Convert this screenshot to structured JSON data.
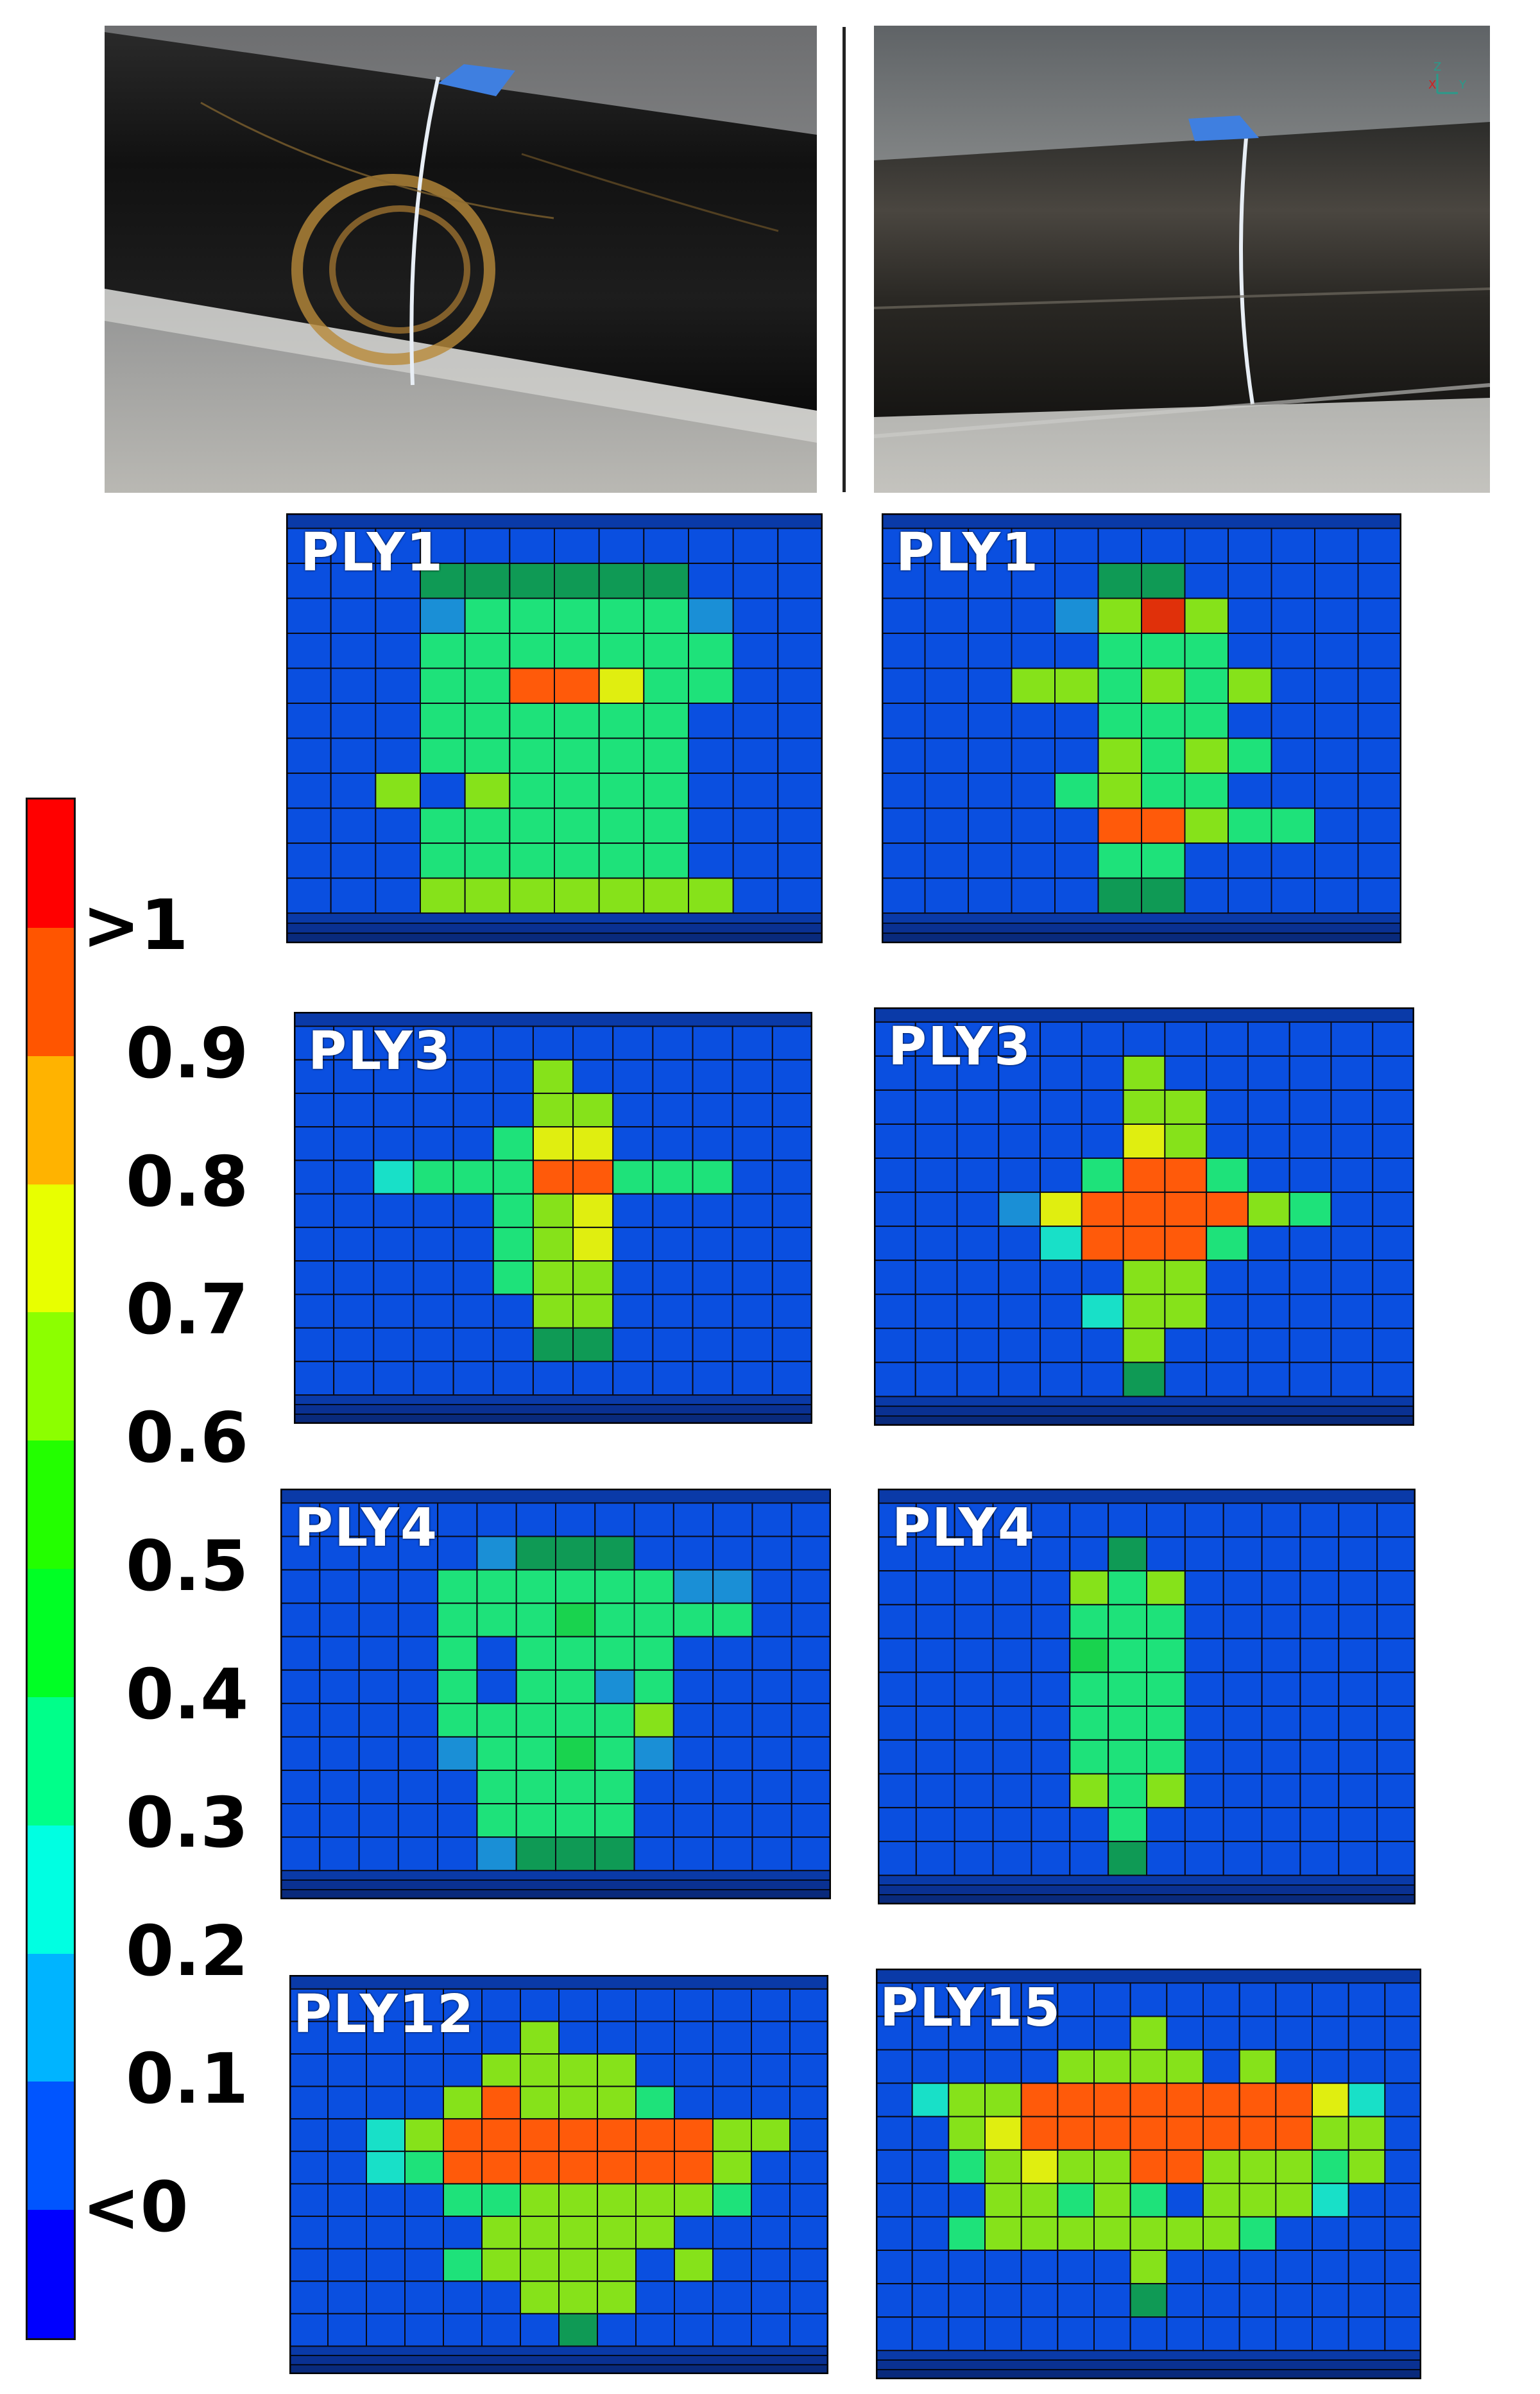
{
  "figure": {
    "legend": {
      "colors": [
        "#ff0000",
        "#ff5500",
        "#ffb300",
        "#e8ff00",
        "#8cff00",
        "#23ff00",
        "#00ff25",
        "#00ff8a",
        "#00ffe2",
        "#00b4ff",
        "#0055ff",
        "#0000ff"
      ],
      "labels": [
        ">1",
        "0.9",
        "0.8",
        "0.7",
        "0.6",
        "0.5",
        "0.4",
        "0.3",
        "0.2",
        "0.1",
        "<0"
      ]
    },
    "photos": [
      {
        "name": "photo-left-tube-impact",
        "axis_icon": "xyz-axis-icon"
      },
      {
        "name": "photo-right-tube-impact"
      }
    ],
    "axis_labels": {
      "z": "Z",
      "x": "X",
      "y": "Y"
    },
    "panels": [
      {
        "label": "PLY1",
        "name": "left-ply1",
        "cols": 12,
        "rows": 11,
        "cells": [
          "BBBBBBBBBBBB",
          "BBBMMMMMMBBB",
          "BBBcGGGGGcBB",
          "BBBGGGGGGGBB",
          "BBBGGOOYGGBB",
          "BBBGGGGGGBBB",
          "BBBGGGGGGBBB",
          "BBLBLGGGGBBB",
          "BBBGGGGGGBBB",
          "BBBGGGGGGBBB",
          "BBBLLLLLLLBB"
        ]
      },
      {
        "label": "PLY1",
        "name": "right-ply1",
        "cols": 12,
        "rows": 11,
        "cells": [
          "BBBBBBBBBBBB",
          "BBBBBMMBBBBB",
          "BBBBcLRLBBBB",
          "BBBBBGGGBBBB",
          "BBBLLGLGLBBB",
          "BBBBBGGGBBBB",
          "BBBBBLGLGBBB",
          "BBBBGLGGBBBB",
          "BBBBBOOLGGBB",
          "BBBBBGGBBBBB",
          "BBBBBMMBBBBB"
        ]
      },
      {
        "label": "PLY3",
        "name": "left-ply3",
        "cols": 13,
        "rows": 11,
        "cells": [
          "BBBBBBBBBBBBB",
          "BBBBBBLBBBBBB",
          "BBBBBBLLBBBBB",
          "BBBBBGYYBBBBB",
          "BBCGGGOOGGGBB",
          "BBBBBGLYBBBBB",
          "BBBBBGLYBBBBB",
          "BBBBBGLLBBBBB",
          "BBBBBBLLBBBBB",
          "BBBBBBMMBBBBB",
          "BBBBBBBBBBBBB"
        ]
      },
      {
        "label": "PLY3",
        "name": "right-ply3",
        "cols": 13,
        "rows": 11,
        "cells": [
          "BBBBBBBBBBBBB",
          "BBBBBBLBBBBBB",
          "BBBBBBLLBBBBB",
          "BBBBBBYLBBBBB",
          "BBBBBGOOGBBBB",
          "BBBcYOOOOLGBB",
          "BBBBCOOOGBBBB",
          "BBBBBBLLBBBBB",
          "BBBBBCLLBBBBB",
          "BBBBBBLBBBBBB",
          "BBBBBBMBBBBBB"
        ]
      },
      {
        "label": "PLY4",
        "name": "left-ply4",
        "cols": 14,
        "rows": 11,
        "cells": [
          "BBBBBBBBBBBBBB",
          "BBBBBcMMMBBBBB",
          "BBBBGGGGGGccBB",
          "BBBBGGGgGGGGBB",
          "BBBBGBGGGGBBBB",
          "BBBBGBGGcGBBBB",
          "BBBBGGGGGLBBBB",
          "BBBBcGGgGcBBBB",
          "BBBBBGGGGBBBBB",
          "BBBBBGGGGBBBBB",
          "BBBBBcMMMBBBBB"
        ]
      },
      {
        "label": "PLY4",
        "name": "right-ply4",
        "cols": 14,
        "rows": 11,
        "cells": [
          "BBBBBBBBBBBBBB",
          "BBBBBBMBBBBBBB",
          "BBBBBLGLBBBBBB",
          "BBBBBGGGBBBBBB",
          "BBBBBgGGBBBBBB",
          "BBBBBGGGBBBBBB",
          "BBBBBGGGBBBBBB",
          "BBBBBGGGBBBBBB",
          "BBBBBLGLBBBBBB",
          "BBBBBBGBBBBBBB",
          "BBBBBBMBBBBBBB"
        ]
      },
      {
        "label": "PLY12",
        "name": "left-ply12",
        "cols": 14,
        "rows": 11,
        "cells": [
          "BBBBBBBBBBBBBB",
          "BBBBBBLBBBBBBB",
          "BBBBBLLLLBBBBB",
          "BBBBLOLLLGBBBB",
          "BBCLOOOOOOOLLB",
          "BBCGOOOOOOOLBB",
          "BBBBGGLLLLLGBB",
          "BBBBBLLLLLBBBB",
          "BBBBGLLLLBLBBB",
          "BBBBBBLLLBBBBB",
          "BBBBBBBMBBBBBB"
        ]
      },
      {
        "label": "PLY15",
        "name": "right-ply15",
        "cols": 15,
        "rows": 11,
        "cells": [
          "BBBBBBBBBBBBBBB",
          "BBBBBBBLBBBBBBB",
          "BBBBBLLLLBLBBBB",
          "BCLLOOOOOOOOYCB",
          "BBLYOOOOOOOOLLB",
          "BBGLYLLOOLLLGLB",
          "BBBLLGLGBLLLCBB",
          "BBGLLLLLLLGBBBB",
          "BBBBBBBLBBBBBBB",
          "BBBBBBBMBBBBBBB",
          "BBBBBBBBBBBBBBB"
        ]
      }
    ],
    "cell_colors": {
      "B": "#0a4fe0",
      "M": "#0f9a55",
      "c": "#1a8fd6",
      "C": "#18e0c8",
      "G": "#1ee27a",
      "g": "#19d34e",
      "L": "#86e21a",
      "Y": "#e0ee10",
      "O": "#ff5a0a",
      "R": "#e0300a"
    }
  }
}
